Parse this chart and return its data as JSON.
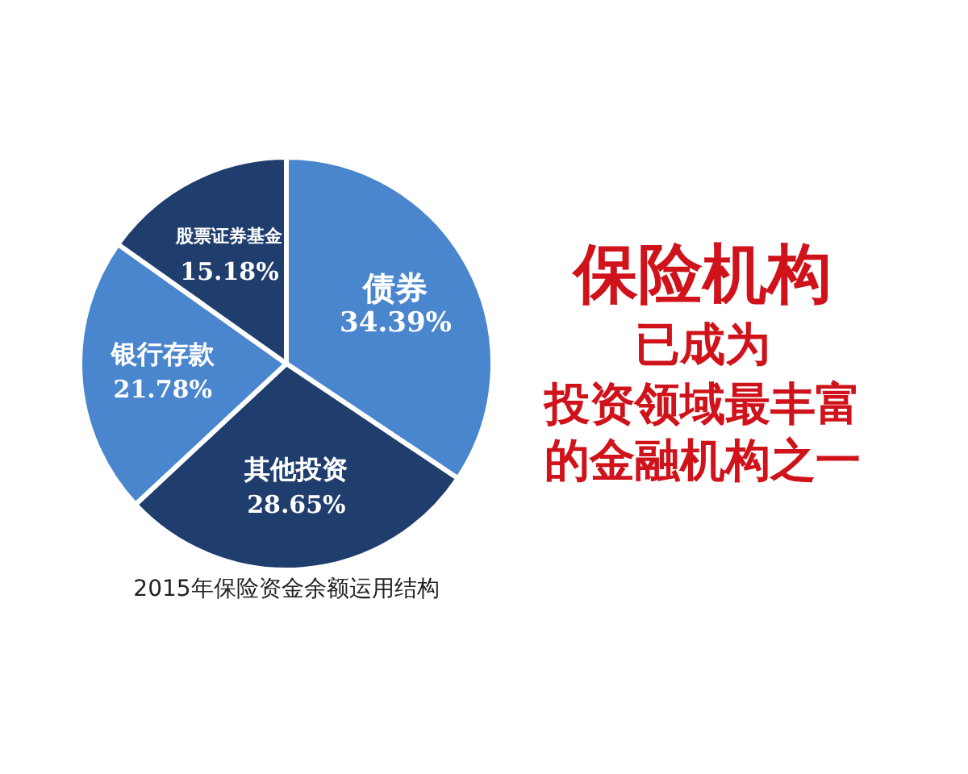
{
  "chart_data": {
    "type": "pie",
    "title": "2015年保险资金余额运用结构",
    "categories": [
      "债券",
      "其他投资",
      "银行存款",
      "股票证券基金"
    ],
    "values": [
      34.39,
      28.65,
      21.78,
      15.18
    ],
    "value_labels": [
      "34.39%",
      "28.65%",
      "21.78%",
      "15.18%"
    ],
    "colors": [
      "#4a86ce",
      "#1f3e6e",
      "#4a86ce",
      "#1f3e6e"
    ],
    "annotations": [
      "保险机构",
      "已成为",
      "投资领域最丰富",
      "的金融机构之一"
    ]
  }
}
